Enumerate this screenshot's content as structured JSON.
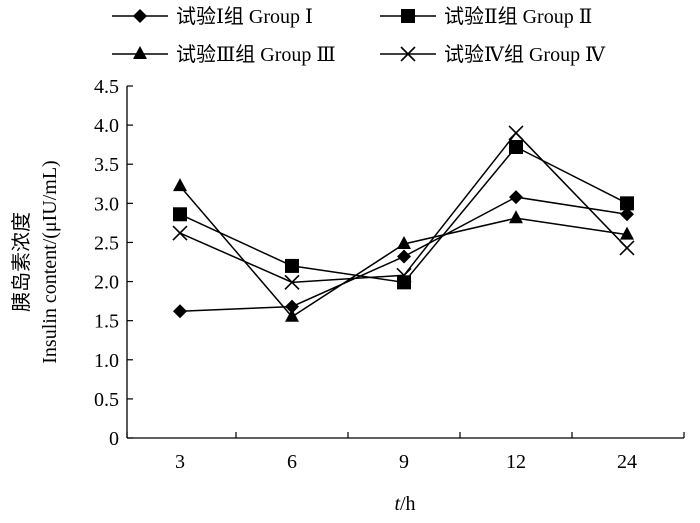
{
  "chart_data": {
    "type": "line",
    "categories": [
      "3",
      "6",
      "9",
      "12",
      "24"
    ],
    "xlabel_italic": "t",
    "xlabel_rest": "/h",
    "ylabel_cn": "胰岛素浓度",
    "ylabel_en": "Insulin content/(μIU/mL)",
    "ylim": [
      0,
      4.5
    ],
    "yticks": [
      "0",
      "0.5",
      "1.0",
      "1.5",
      "2.0",
      "2.5",
      "3.0",
      "3.5",
      "4.0",
      "4.5"
    ],
    "series": [
      {
        "name": "试验Ⅰ组  Group Ⅰ",
        "marker": "diamond",
        "values": [
          1.62,
          1.68,
          2.32,
          3.08,
          2.86
        ]
      },
      {
        "name": "试验Ⅱ组  Group Ⅱ",
        "marker": "square",
        "values": [
          2.86,
          2.2,
          1.99,
          3.72,
          3.0
        ]
      },
      {
        "name": "试验Ⅲ组  Group Ⅲ",
        "marker": "triangle",
        "values": [
          3.22,
          1.55,
          2.48,
          2.81,
          2.6
        ]
      },
      {
        "name": "试验Ⅳ组  Group Ⅳ",
        "marker": "cross",
        "values": [
          2.62,
          1.99,
          2.08,
          3.9,
          2.43
        ]
      }
    ]
  }
}
